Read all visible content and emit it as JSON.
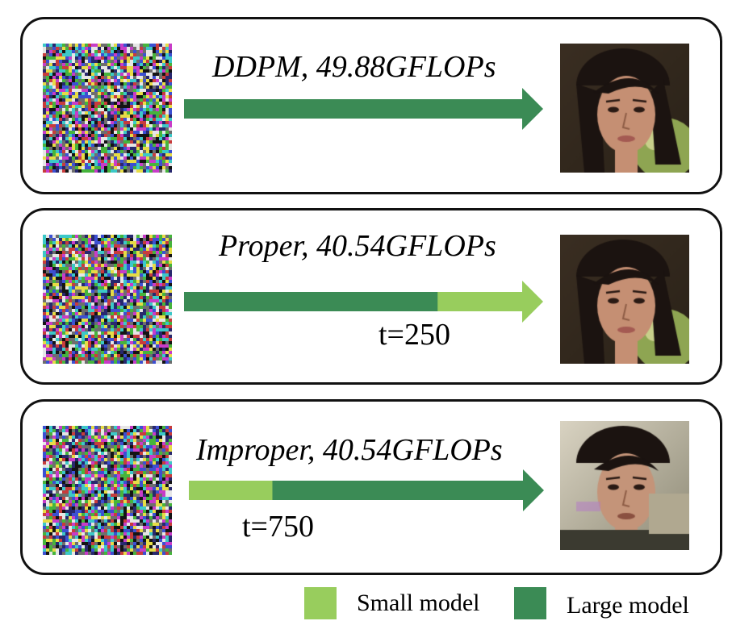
{
  "colors": {
    "small_model": "#98cd5d",
    "large_model": "#3b8b55",
    "border": "#111111"
  },
  "panels": [
    {
      "title": "DDPM, 49.88GFLOPs",
      "t_label": "",
      "segments": [
        {
          "model": "large",
          "fraction": 1.0
        }
      ],
      "output": "clean-face"
    },
    {
      "title": "Proper, 40.54GFLOPs",
      "t_label": "t=250",
      "segments": [
        {
          "model": "large",
          "fraction": 0.75
        },
        {
          "model": "small",
          "fraction": 0.25
        }
      ],
      "output": "clean-face"
    },
    {
      "title": "Improper, 40.54GFLOPs",
      "t_label": "t=750",
      "segments": [
        {
          "model": "small",
          "fraction": 0.25
        },
        {
          "model": "large",
          "fraction": 0.75
        }
      ],
      "output": "distorted-face"
    }
  ],
  "legend": {
    "small": "Small model",
    "large": "Large model"
  }
}
